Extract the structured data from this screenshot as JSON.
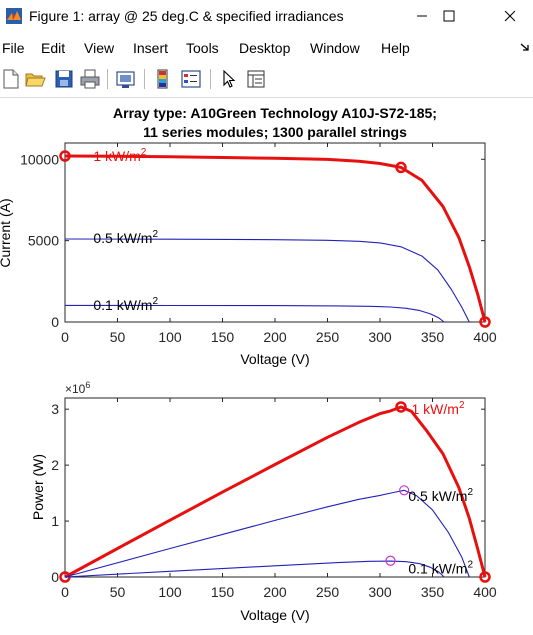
{
  "window": {
    "title": "Figure 1: array @ 25 deg.C & specified irradiances",
    "minimize_icon": "minimize-icon",
    "maximize_icon": "maximize-icon",
    "close_icon": "close-icon"
  },
  "menu": {
    "items": [
      "File",
      "Edit",
      "View",
      "Insert",
      "Tools",
      "Desktop",
      "Window",
      "Help"
    ],
    "dock_icon": "dock-arrow-icon"
  },
  "toolbar": {
    "icons": [
      "new-figure-icon",
      "open-file-icon",
      "save-icon",
      "print-icon",
      "link-plot-icon",
      "insert-colorbar-icon",
      "insert-legend-icon",
      "edit-plot-arrow-icon",
      "property-inspector-icon"
    ]
  },
  "colors": {
    "max_curve": "#e8100f",
    "curve": "#2222bb",
    "mpp_marker_small": "#cc33cc"
  },
  "chart_data": [
    {
      "type": "line",
      "title": "Array type: A10Green Technology A10J-S72-185;",
      "subtitle": "11 series modules; 1300 parallel strings",
      "xlabel": "Voltage (V)",
      "ylabel": "Current (A)",
      "xlim": [
        0,
        400
      ],
      "ylim": [
        0,
        11000
      ],
      "xticks": [
        0,
        50,
        100,
        150,
        200,
        250,
        300,
        350,
        400
      ],
      "yticks": [
        0,
        5000,
        10000
      ],
      "grid": false,
      "series": [
        {
          "name": "1 kW/m",
          "color": "#e8100f",
          "x": [
            0,
            50,
            100,
            150,
            200,
            250,
            280,
            300,
            320,
            340,
            360,
            375,
            385,
            393,
            400
          ],
          "y": [
            10200,
            10180,
            10150,
            10110,
            10060,
            9990,
            9880,
            9740,
            9500,
            8700,
            7100,
            5200,
            3400,
            1700,
            0
          ],
          "markers": [
            [
              0,
              10200
            ],
            [
              320,
              9500
            ],
            [
              400,
              0
            ]
          ]
        },
        {
          "name": "0.5 kW/m",
          "color": "#2222bb",
          "x": [
            0,
            100,
            200,
            250,
            280,
            300,
            320,
            340,
            355,
            368,
            378,
            385
          ],
          "y": [
            5100,
            5090,
            5060,
            5020,
            4960,
            4860,
            4620,
            4050,
            3200,
            2000,
            900,
            0
          ]
        },
        {
          "name": "0.1 kW/m",
          "color": "#2222bb",
          "x": [
            0,
            100,
            200,
            260,
            290,
            310,
            325,
            338,
            348,
            356,
            361
          ],
          "y": [
            1020,
            1015,
            1005,
            990,
            965,
            920,
            840,
            700,
            500,
            250,
            0
          ]
        }
      ],
      "annotations": [
        {
          "text": "1 kW/m",
          "sup": "2",
          "x": 27,
          "y": 10200,
          "color": "#e8100f"
        },
        {
          "text": "0.5 kW/m",
          "sup": "2",
          "x": 27,
          "y": 5150,
          "color": "#000000"
        },
        {
          "text": "0.1 kW/m",
          "sup": "2",
          "x": 27,
          "y": 1050,
          "color": "#000000"
        }
      ]
    },
    {
      "type": "line",
      "title": "",
      "xlabel": "Voltage (V)",
      "ylabel": "Power (W)",
      "exponent_label": "×10",
      "exponent_sup": "6",
      "xlim": [
        0,
        400
      ],
      "ylim": [
        0,
        3.2
      ],
      "xticks": [
        0,
        50,
        100,
        150,
        200,
        250,
        300,
        350,
        400
      ],
      "yticks": [
        0,
        1,
        2,
        3
      ],
      "grid": false,
      "series": [
        {
          "name": "1 kW/m",
          "color": "#e8100f",
          "x": [
            0,
            50,
            100,
            150,
            200,
            250,
            280,
            300,
            310,
            320,
            330,
            345,
            360,
            375,
            385,
            393,
            400
          ],
          "y": [
            0,
            0.51,
            1.015,
            1.517,
            2.012,
            2.498,
            2.766,
            2.922,
            2.97,
            3.04,
            2.96,
            2.6,
            2.2,
            1.6,
            1.05,
            0.5,
            0
          ],
          "markers": [
            [
              0,
              0
            ],
            [
              320,
              3.04
            ],
            [
              400,
              0
            ]
          ]
        },
        {
          "name": "0.5 kW/m",
          "color": "#2222bb",
          "x": [
            0,
            100,
            200,
            250,
            280,
            300,
            315,
            323,
            335,
            350,
            365,
            378,
            385
          ],
          "y": [
            0,
            0.509,
            1.012,
            1.255,
            1.389,
            1.458,
            1.52,
            1.55,
            1.45,
            1.2,
            0.8,
            0.35,
            0
          ],
          "markers_open": [
            [
              323,
              1.55
            ]
          ]
        },
        {
          "name": "0.1 kW/m",
          "color": "#2222bb",
          "x": [
            0,
            100,
            200,
            260,
            290,
            310,
            325,
            338,
            348,
            356,
            361
          ],
          "y": [
            0,
            0.102,
            0.201,
            0.257,
            0.28,
            0.285,
            0.273,
            0.237,
            0.174,
            0.089,
            0
          ],
          "markers_open": [
            [
              310,
              0.29
            ]
          ]
        }
      ],
      "annotations": [
        {
          "text": "1 kW/m",
          "sup": "2",
          "x": 330,
          "y": 3.0,
          "color": "#e8100f"
        },
        {
          "text": "0.5 kW/m",
          "sup": "2",
          "x": 327,
          "y": 1.45,
          "color": "#000000"
        },
        {
          "text": "0.1 kW/m",
          "sup": "2",
          "x": 327,
          "y": 0.15,
          "color": "#000000"
        }
      ]
    }
  ]
}
